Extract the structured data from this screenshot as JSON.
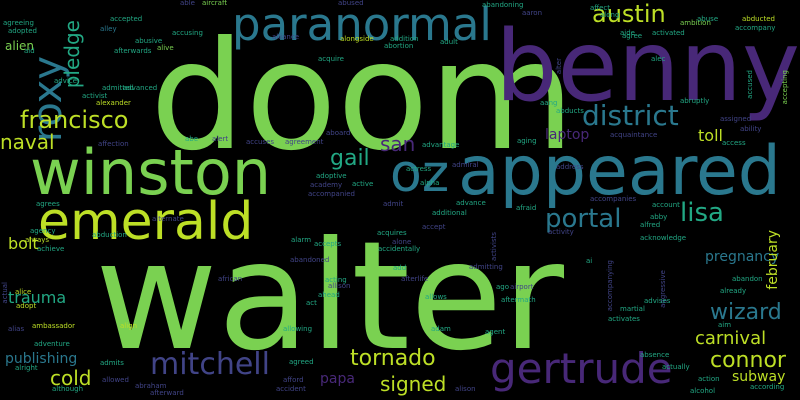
{
  "background_color": "#000000",
  "words": [
    {
      "text": "walter",
      "color": "#7ad151"
    },
    {
      "text": "doom",
      "color": "#7ad151"
    },
    {
      "text": "benny",
      "color": "#482878"
    },
    {
      "text": "appeared",
      "color": "#2a788e"
    },
    {
      "text": "winston",
      "color": "#7ad151"
    },
    {
      "text": "paranormal",
      "color": "#2a788e"
    },
    {
      "text": "emerald",
      "color": "#bddf26"
    },
    {
      "text": "oz",
      "color": "#2a788e"
    },
    {
      "text": "gertrude",
      "color": "#482878"
    },
    {
      "text": "roxy",
      "color": "#2a788e"
    },
    {
      "text": "francisco",
      "color": "#bddf26"
    },
    {
      "text": "austin",
      "color": "#bddf26"
    },
    {
      "text": "district",
      "color": "#2a788e"
    },
    {
      "text": "mitchell",
      "color": "#414487"
    },
    {
      "text": "tornado",
      "color": "#bddf26"
    },
    {
      "text": "portal",
      "color": "#2a788e"
    },
    {
      "text": "lisa",
      "color": "#22a884"
    },
    {
      "text": "wizard",
      "color": "#2a788e"
    },
    {
      "text": "connor",
      "color": "#bddf26"
    },
    {
      "text": "gail",
      "color": "#22a884"
    },
    {
      "text": "naval",
      "color": "#bddf26"
    },
    {
      "text": "cold",
      "color": "#bddf26"
    },
    {
      "text": "signed",
      "color": "#bddf26"
    },
    {
      "text": "carnival",
      "color": "#bddf26"
    },
    {
      "text": "san",
      "color": "#482878"
    },
    {
      "text": "pledge",
      "color": "#22a884"
    },
    {
      "text": "trauma",
      "color": "#22a884"
    },
    {
      "text": "bolt",
      "color": "#bddf26"
    },
    {
      "text": "toll",
      "color": "#bddf26"
    },
    {
      "text": "pregnancy",
      "color": "#2a788e"
    },
    {
      "text": "publishing",
      "color": "#2a788e"
    },
    {
      "text": "subway",
      "color": "#bddf26"
    },
    {
      "text": "papa",
      "color": "#482878"
    },
    {
      "text": "laptop",
      "color": "#482878"
    },
    {
      "text": "february",
      "color": "#bddf26"
    },
    {
      "text": "alien",
      "color": "#7ad151"
    },
    {
      "text": "accepted",
      "color": "#22a884"
    },
    {
      "text": "alley",
      "color": "#2a788e"
    },
    {
      "text": "aircraft",
      "color": "#7ad151"
    },
    {
      "text": "abandoning",
      "color": "#22a884"
    },
    {
      "text": "abducted",
      "color": "#bddf26"
    },
    {
      "text": "accompany",
      "color": "#22a884"
    },
    {
      "text": "acquire",
      "color": "#22a884"
    },
    {
      "text": "advice",
      "color": "#22a884"
    },
    {
      "text": "alexander",
      "color": "#bddf26"
    },
    {
      "text": "admitted",
      "color": "#22a884"
    },
    {
      "text": "advanced",
      "color": "#22a884"
    },
    {
      "text": "alongside",
      "color": "#bddf26"
    },
    {
      "text": "abortion",
      "color": "#22a884"
    },
    {
      "text": "addition",
      "color": "#22a884"
    },
    {
      "text": "adult",
      "color": "#22a884"
    },
    {
      "text": "activated",
      "color": "#22a884"
    },
    {
      "text": "ambition",
      "color": "#7ad151"
    },
    {
      "text": "agree",
      "color": "#22a884"
    },
    {
      "text": "alliance",
      "color": "#414487"
    },
    {
      "text": "afterwards",
      "color": "#22a884"
    },
    {
      "text": "accusing",
      "color": "#22a884"
    },
    {
      "text": "abusive",
      "color": "#22a884"
    },
    {
      "text": "adopted",
      "color": "#22a884"
    },
    {
      "text": "agreeing",
      "color": "#22a884"
    },
    {
      "text": "aid",
      "color": "#22a884"
    },
    {
      "text": "activist",
      "color": "#22a884"
    },
    {
      "text": "alert",
      "color": "#414487"
    },
    {
      "text": "accuses",
      "color": "#414487"
    },
    {
      "text": "agreement",
      "color": "#414487"
    },
    {
      "text": "aboard",
      "color": "#414487"
    },
    {
      "text": "advantage",
      "color": "#22a884"
    },
    {
      "text": "access",
      "color": "#22a884"
    },
    {
      "text": "ability",
      "color": "#414487"
    },
    {
      "text": "abruptly",
      "color": "#22a884"
    },
    {
      "text": "acquaintance",
      "color": "#414487"
    },
    {
      "text": "aggressive",
      "color": "#414487"
    },
    {
      "text": "accepting",
      "color": "#7ad151"
    },
    {
      "text": "alive",
      "color": "#7ad151"
    },
    {
      "text": "address",
      "color": "#414487"
    },
    {
      "text": "accompanies",
      "color": "#414487"
    },
    {
      "text": "adoptive",
      "color": "#22a884"
    },
    {
      "text": "academy",
      "color": "#414487"
    },
    {
      "text": "accompanied",
      "color": "#414487"
    },
    {
      "text": "active",
      "color": "#22a884"
    },
    {
      "text": "actress",
      "color": "#22a884"
    },
    {
      "text": "advance",
      "color": "#22a884"
    },
    {
      "text": "additional",
      "color": "#22a884"
    },
    {
      "text": "afraid",
      "color": "#22a884"
    },
    {
      "text": "account",
      "color": "#22a884"
    },
    {
      "text": "abby",
      "color": "#22a884"
    },
    {
      "text": "alfred",
      "color": "#22a884"
    },
    {
      "text": "acknowledge",
      "color": "#22a884"
    },
    {
      "text": "agency",
      "color": "#22a884"
    },
    {
      "text": "abduction",
      "color": "#22a884"
    },
    {
      "text": "affection",
      "color": "#414487"
    },
    {
      "text": "agrees",
      "color": "#22a884"
    },
    {
      "text": "always",
      "color": "#bddf26"
    },
    {
      "text": "achieve",
      "color": "#22a884"
    },
    {
      "text": "alarm",
      "color": "#22a884"
    },
    {
      "text": "accepts",
      "color": "#22a884"
    },
    {
      "text": "acquires",
      "color": "#22a884"
    },
    {
      "text": "accidentally",
      "color": "#22a884"
    },
    {
      "text": "activity",
      "color": "#414487"
    },
    {
      "text": "alone",
      "color": "#414487"
    },
    {
      "text": "admit",
      "color": "#414487"
    },
    {
      "text": "accept",
      "color": "#414487"
    },
    {
      "text": "alternate",
      "color": "#414487"
    },
    {
      "text": "abandoned",
      "color": "#414487"
    },
    {
      "text": "african",
      "color": "#414487"
    },
    {
      "text": "acting",
      "color": "#22a884"
    },
    {
      "text": "allison",
      "color": "#414487"
    },
    {
      "text": "ahead",
      "color": "#22a884"
    },
    {
      "text": "act",
      "color": "#22a884"
    },
    {
      "text": "allowing",
      "color": "#22a884"
    },
    {
      "text": "add",
      "color": "#22a884"
    },
    {
      "text": "afterlife",
      "color": "#414487"
    },
    {
      "text": "allows",
      "color": "#22a884"
    },
    {
      "text": "admitting",
      "color": "#414487"
    },
    {
      "text": "ago",
      "color": "#22a884"
    },
    {
      "text": "airport",
      "color": "#414487"
    },
    {
      "text": "aftermath",
      "color": "#22a884"
    },
    {
      "text": "alcohol",
      "color": "#22a884"
    },
    {
      "text": "actual",
      "color": "#414487"
    },
    {
      "text": "alice",
      "color": "#bddf26"
    },
    {
      "text": "adopt",
      "color": "#bddf26"
    },
    {
      "text": "alias",
      "color": "#414487"
    },
    {
      "text": "ambassador",
      "color": "#bddf26"
    },
    {
      "text": "adventure",
      "color": "#22a884"
    },
    {
      "text": "align",
      "color": "#bddf26"
    },
    {
      "text": "adam",
      "color": "#22a884"
    },
    {
      "text": "agent",
      "color": "#22a884"
    },
    {
      "text": "martial",
      "color": "#22a884"
    },
    {
      "text": "activates",
      "color": "#22a884"
    },
    {
      "text": "aim",
      "color": "#22a884"
    },
    {
      "text": "advises",
      "color": "#22a884"
    },
    {
      "text": "already",
      "color": "#22a884"
    },
    {
      "text": "abandon",
      "color": "#22a884"
    },
    {
      "text": "absence",
      "color": "#22a884"
    },
    {
      "text": "alright",
      "color": "#22a884"
    },
    {
      "text": "admits",
      "color": "#22a884"
    },
    {
      "text": "agreed",
      "color": "#22a884"
    },
    {
      "text": "afford",
      "color": "#414487"
    },
    {
      "text": "accident",
      "color": "#414487"
    },
    {
      "text": "although",
      "color": "#22a884"
    },
    {
      "text": "abraham",
      "color": "#414487"
    },
    {
      "text": "afterward",
      "color": "#414487"
    },
    {
      "text": "allowed",
      "color": "#414487"
    },
    {
      "text": "alison",
      "color": "#414487"
    },
    {
      "text": "action",
      "color": "#22a884"
    },
    {
      "text": "actually",
      "color": "#22a884"
    },
    {
      "text": "according",
      "color": "#22a884"
    },
    {
      "text": "accompanying",
      "color": "#414487"
    },
    {
      "text": "alpha",
      "color": "#22a884"
    },
    {
      "text": "admiral",
      "color": "#414487"
    },
    {
      "text": "abe",
      "color": "#22a884"
    },
    {
      "text": "affect",
      "color": "#22a884"
    },
    {
      "text": "along",
      "color": "#22a884"
    },
    {
      "text": "aaron",
      "color": "#414487"
    },
    {
      "text": "abused",
      "color": "#414487"
    },
    {
      "text": "able",
      "color": "#414487"
    },
    {
      "text": "abuse",
      "color": "#22a884"
    },
    {
      "text": "aide",
      "color": "#22a884"
    },
    {
      "text": "alec",
      "color": "#22a884"
    },
    {
      "text": "accused",
      "color": "#22a884"
    },
    {
      "text": "aging",
      "color": "#22a884"
    },
    {
      "text": "aang",
      "color": "#22a884"
    },
    {
      "text": "abducts",
      "color": "#22a884"
    },
    {
      "text": "alter",
      "color": "#414487"
    },
    {
      "text": "ai",
      "color": "#22a884"
    },
    {
      "text": "activists",
      "color": "#414487"
    },
    {
      "text": "assigned",
      "color": "#414487"
    }
  ]
}
